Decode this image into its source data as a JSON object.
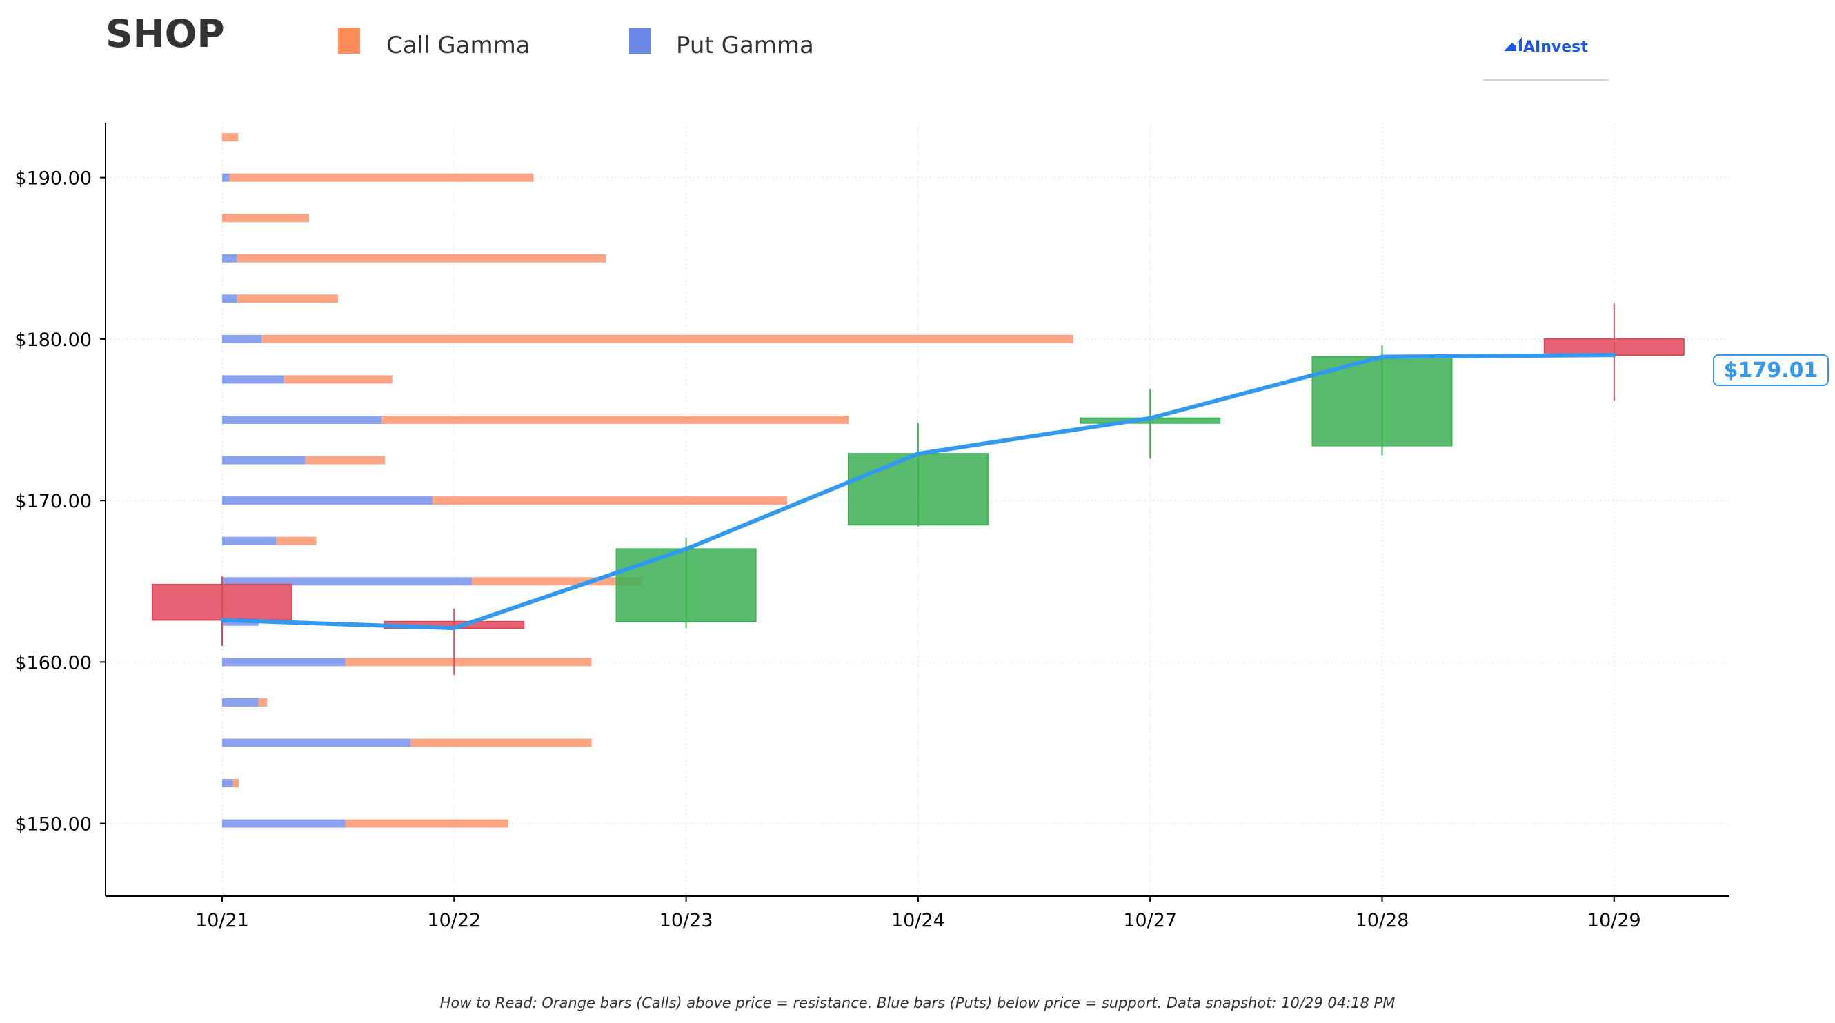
{
  "ticker": "SHOP",
  "legend": [
    {
      "label": "Call Gamma",
      "color": "#ff8c5a"
    },
    {
      "label": "Put Gamma",
      "color": "#6a88e8"
    }
  ],
  "brand": {
    "name": "AInvest",
    "icon": "ainvest-logo-icon",
    "color": "#1a56e8"
  },
  "footnote": "How to Read: Orange bars (Calls) above price = resistance. Blue bars (Puts) below price = support. Data snapshot: 10/29 04:18 PM",
  "colors": {
    "call": "#fca585",
    "put": "#8aa2ee",
    "up": "#3cb054",
    "down": "#e0485a",
    "price_line": "#3399ee",
    "grid": "#eeeeee"
  },
  "chart_data": {
    "type": "candlestick-with-gamma-bars",
    "ylim": [
      145.5,
      193.4
    ],
    "grid": true,
    "x_categories": [
      "10/21",
      "10/22",
      "10/23",
      "10/24",
      "10/27",
      "10/28",
      "10/29"
    ],
    "y_ticks": [
      150,
      160,
      170,
      180,
      190
    ],
    "y_tick_labels": [
      "$150.00",
      "$160.00",
      "$170.00",
      "$180.00",
      "$190.00"
    ],
    "candles": [
      {
        "date": "10/21",
        "open": 164.8,
        "high": 165.3,
        "low": 161.0,
        "close": 162.6
      },
      {
        "date": "10/22",
        "open": 162.5,
        "high": 163.3,
        "low": 159.2,
        "close": 162.1
      },
      {
        "date": "10/23",
        "open": 162.5,
        "high": 167.7,
        "low": 162.1,
        "close": 167.0
      },
      {
        "date": "10/24",
        "open": 168.5,
        "high": 174.8,
        "low": 168.4,
        "close": 172.9
      },
      {
        "date": "10/27",
        "open": 174.8,
        "high": 176.9,
        "low": 172.6,
        "close": 175.1
      },
      {
        "date": "10/28",
        "open": 173.4,
        "high": 179.6,
        "low": 172.8,
        "close": 178.9
      },
      {
        "date": "10/29",
        "open": 180.0,
        "high": 182.2,
        "low": 176.2,
        "close": 179.01
      }
    ],
    "price_line": [
      162.6,
      162.1,
      167.0,
      172.9,
      175.1,
      178.9,
      179.01
    ],
    "last_price_label": "$179.01",
    "gamma_bars": [
      {
        "strike": 150.0,
        "put": 1.7,
        "call": 2.25
      },
      {
        "strike": 152.5,
        "put": 0.15,
        "call": 0.08
      },
      {
        "strike": 155.0,
        "put": 2.6,
        "call": 2.5
      },
      {
        "strike": 157.5,
        "put": 0.5,
        "call": 0.12
      },
      {
        "strike": 160.0,
        "put": 1.7,
        "call": 3.4
      },
      {
        "strike": 162.5,
        "put": 0.5,
        "call": 0.0
      },
      {
        "strike": 165.0,
        "put": 3.45,
        "call": 2.35
      },
      {
        "strike": 167.5,
        "put": 0.75,
        "call": 0.55
      },
      {
        "strike": 170.0,
        "put": 2.9,
        "call": 4.9
      },
      {
        "strike": 172.5,
        "put": 1.15,
        "call": 1.1
      },
      {
        "strike": 175.0,
        "put": 2.2,
        "call": 6.45
      },
      {
        "strike": 177.5,
        "put": 0.85,
        "call": 1.5
      },
      {
        "strike": 180.0,
        "put": 0.55,
        "call": 11.2
      },
      {
        "strike": 182.5,
        "put": 0.2,
        "call": 1.4
      },
      {
        "strike": 185.0,
        "put": 0.2,
        "call": 5.1
      },
      {
        "strike": 187.5,
        "put": 0.0,
        "call": 1.2
      },
      {
        "strike": 190.0,
        "put": 0.1,
        "call": 4.2
      },
      {
        "strike": 192.5,
        "put": 0.0,
        "call": 0.22
      }
    ]
  }
}
